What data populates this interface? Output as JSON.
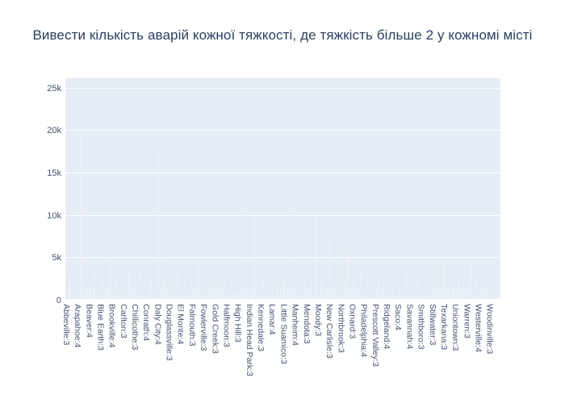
{
  "chart_data": {
    "type": "bar",
    "title": "Вивести кількість аварій кожної тяжкості, де тяжкість більше 2 у кожномі місті",
    "xlabel": "",
    "ylabel": "",
    "ylim": [
      0,
      26200
    ],
    "grid": true,
    "legend": false,
    "plot_bg": "#e5ecf6",
    "paper_bg": "#ffffff",
    "bar_color": "#edf2fb",
    "grid_color": "#ffffff",
    "text_color": "#42516d",
    "title_color": "#2a3f5f",
    "ytick_values": [
      0,
      5000,
      10000,
      15000,
      20000,
      25000
    ],
    "ytick_labels": [
      "0",
      "5k",
      "10k",
      "15k",
      "20k",
      "25k"
    ],
    "x_label_every_nth_bar": 8,
    "categories": [
      "Abbeville:3",
      "Arapahoe:4",
      "Beaver:4",
      "Blue Earth:3",
      "Brookville:4",
      "Carlton:3",
      "Chillicothe:3",
      "Conrath:4",
      "Daly City:4",
      "Douglassville:3",
      "El Monte:4",
      "Falmouth:3",
      "Fowlerville:3",
      "Gold Creek:3",
      "Halfmoon:3",
      "High Hill:3",
      "Indian Head Park:3",
      "Kennedale:3",
      "Lamar:4",
      "Little Suamico:3",
      "Manheim:4",
      "Mendota:3",
      "Moody:3",
      "New Carlisle:3",
      "Northbrook:3",
      "Oxnard:3",
      "Philadelphia:4",
      "Prescott Valley:3",
      "Ridgeland:4",
      "Saco:4",
      "Savannah:4",
      "Smithboro:3",
      "Stillwater:3",
      "Texarkana:3",
      "Uniontown:3",
      "Warren:3",
      "Westerville:4",
      "Woodinville:3"
    ],
    "bars": [
      420,
      180,
      950,
      2600,
      310,
      1450,
      700,
      240,
      1100,
      380,
      20000,
      620,
      1900,
      270,
      840,
      1500,
      330,
      2250,
      540,
      1280,
      3900,
      460,
      990,
      210,
      1750,
      290,
      3100,
      680,
      1350,
      520,
      2400,
      5000,
      260,
      1080,
      440,
      2900,
      760,
      190,
      1620,
      380,
      2100,
      590,
      1340,
      310,
      3300,
      870,
      230,
      1480,
      410,
      1850,
      270,
      940,
      3700,
      560,
      1200,
      330,
      720,
      260,
      1560,
      480,
      2750,
      350,
      1040,
      610,
      290,
      18000,
      530,
      1710,
      400,
      2300,
      6100,
      860,
      1130,
      340,
      2050,
      470,
      1390,
      250,
      3200,
      700,
      520,
      1660,
      300,
      2480,
      640,
      1120,
      410,
      1980,
      230,
      890,
      1540,
      370,
      2650,
      4800,
      760,
      1310,
      450,
      1220,
      280,
      3450,
      590,
      1870,
      340,
      1010,
      1700,
      390,
      2150,
      520,
      980,
      260,
      1430,
      3000,
      310,
      1570,
      430,
      2700,
      680,
      1260,
      200,
      830,
      940,
      360,
      1810,
      540,
      2350,
      420,
      16000,
      1090,
      280,
      1480,
      650,
      2000,
      10000,
      390,
      1130,
      510,
      1640,
      300,
      2550,
      720,
      1190,
      440,
      3350,
      250,
      570,
      1940,
      350,
      1060,
      2250,
      480,
      1420,
      310,
      810,
      2800,
      460,
      1580,
      240,
      24300,
      930,
      1760,
      400,
      1230,
      2900,
      550,
      1800,
      330,
      990,
      2100,
      270,
      1520,
      430,
      3150,
      760,
      1340,
      600,
      9800,
      1900,
      380,
      1170,
      2600,
      490,
      860,
      1400,
      320,
      7200,
      540,
      2300,
      410,
      1650,
      290,
      1980,
      750,
      360,
      1100,
      480,
      2750,
      620,
      5900,
      250,
      1550,
      880,
      2450,
      330,
      1720,
      560,
      1290,
      3800,
      420,
      1380,
      300,
      2100,
      470,
      940,
      1810,
      260,
      690,
      510,
      1470,
      350,
      2950,
      800,
      1150,
      6300,
      390,
      1250,
      430,
      2600,
      280,
      1900,
      640,
      1080,
      370,
      730,
      2050,
      490,
      1360,
      300,
      3500,
      870,
      9100,
      340,
      1620,
      580,
      2200,
      450,
      1040,
      2850,
      260,
      1500,
      390,
      960,
      2400,
      520,
      1780,
      310,
      1130,
      620,
      2700,
      360,
      1450,
      840,
      2000,
      480,
      1340,
      4600,
      290,
      1680,
      530,
      2250,
      410,
      990,
      1560,
      380,
      1210,
      2500,
      450,
      1740,
      320,
      2950,
      680,
      1020,
      460,
      1890,
      4500,
      270,
      1430,
      590,
      2300,
      350,
      1560,
      720,
      2100,
      440,
      1270,
      3000,
      530,
      1150,
      310,
      2350,
      600,
      1820,
      420,
      900,
      1600
    ]
  }
}
